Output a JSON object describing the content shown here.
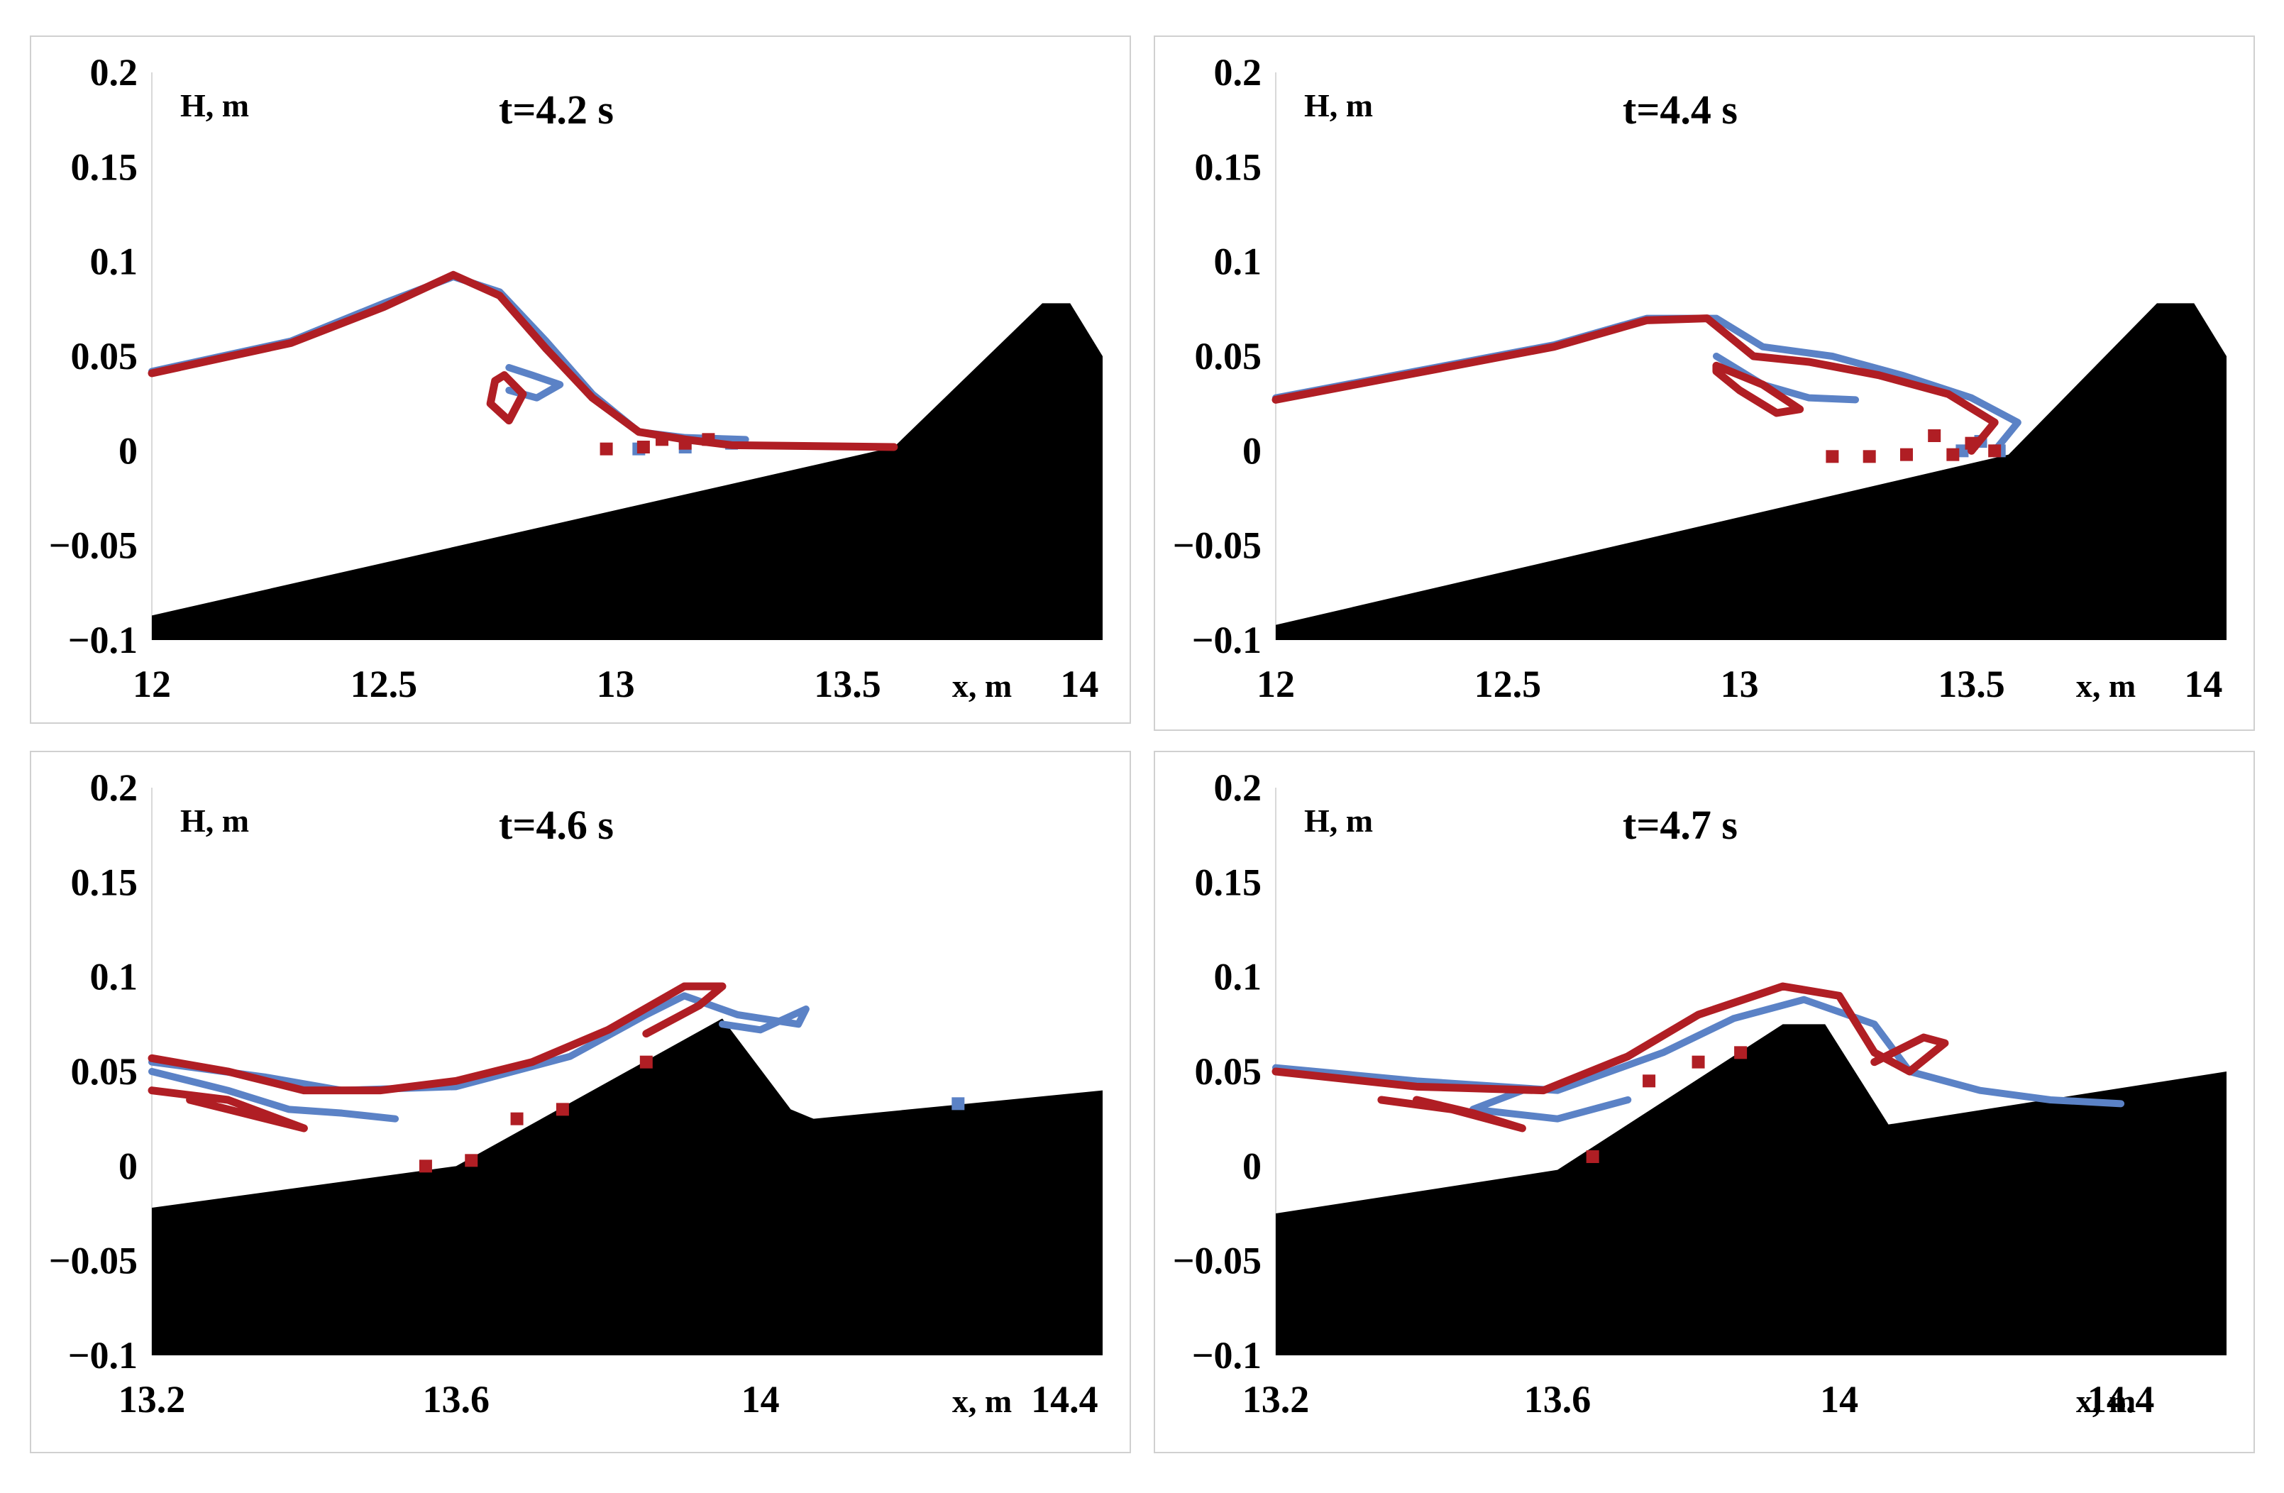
{
  "colors": {
    "simulation": "#b01e24",
    "experiment": "#5b82c6",
    "bottom": "#000000"
  },
  "chart_data": [
    {
      "type": "line",
      "title": "t=4.2 s",
      "xlabel": "x, m",
      "ylabel": "H, m",
      "xlim": [
        12,
        14.05
      ],
      "ylim": [
        -0.1,
        0.2
      ],
      "xticks": [
        {
          "v": 12,
          "label": "12"
        },
        {
          "v": 12.5,
          "label": "12.5"
        },
        {
          "v": 13,
          "label": "13"
        },
        {
          "v": 13.5,
          "label": "13.5"
        },
        {
          "v": 14,
          "label": "14"
        }
      ],
      "yticks": [
        {
          "v": 0.2,
          "label": "0.2"
        },
        {
          "v": 0.15,
          "label": "0.15"
        },
        {
          "v": 0.1,
          "label": "0.1"
        },
        {
          "v": 0.05,
          "label": "0.05"
        },
        {
          "v": 0,
          "label": "0"
        },
        {
          "v": -0.05,
          "label": "−0.05"
        },
        {
          "v": -0.1,
          "label": "−0.1"
        }
      ],
      "bottom": [
        [
          12,
          -0.087
        ],
        [
          13.6,
          0.002
        ],
        [
          13.92,
          0.078
        ],
        [
          13.98,
          0.078
        ],
        [
          14.05,
          0.05
        ],
        [
          14.05,
          -0.1
        ],
        [
          12,
          -0.1
        ]
      ],
      "series": [
        {
          "name": "experiment",
          "lines": [
            [
              [
                12.0,
                0.042
              ],
              [
                12.3,
                0.058
              ],
              [
                12.5,
                0.078
              ],
              [
                12.65,
                0.092
              ],
              [
                12.75,
                0.084
              ],
              [
                12.85,
                0.058
              ],
              [
                12.95,
                0.03
              ],
              [
                13.05,
                0.01
              ],
              [
                13.15,
                0.007
              ],
              [
                13.28,
                0.006
              ]
            ],
            [
              [
                12.77,
                0.044
              ],
              [
                12.82,
                0.04
              ],
              [
                12.88,
                0.035
              ],
              [
                12.83,
                0.028
              ],
              [
                12.77,
                0.032
              ]
            ]
          ],
          "dots": [
            [
              13.05,
              0.001
            ],
            [
              13.15,
              0.002
            ],
            [
              13.25,
              0.004
            ]
          ]
        },
        {
          "name": "simulation",
          "lines": [
            [
              [
                12.0,
                0.041
              ],
              [
                12.3,
                0.057
              ],
              [
                12.5,
                0.076
              ],
              [
                12.65,
                0.093
              ],
              [
                12.75,
                0.082
              ],
              [
                12.85,
                0.054
              ],
              [
                12.95,
                0.028
              ],
              [
                13.05,
                0.01
              ],
              [
                13.15,
                0.006
              ],
              [
                13.25,
                0.003
              ],
              [
                13.6,
                0.002
              ]
            ],
            [
              [
                12.76,
                0.04
              ],
              [
                12.8,
                0.03
              ],
              [
                12.77,
                0.016
              ],
              [
                12.73,
                0.025
              ],
              [
                12.74,
                0.037
              ],
              [
                12.76,
                0.04
              ]
            ]
          ],
          "dots": [
            [
              12.98,
              0.001
            ],
            [
              13.06,
              0.002
            ],
            [
              13.1,
              0.006
            ],
            [
              13.15,
              0.004
            ],
            [
              13.2,
              0.006
            ]
          ]
        }
      ]
    },
    {
      "type": "line",
      "title": "t=4.4 s",
      "xlabel": "x, m",
      "ylabel": "H, m",
      "xlim": [
        12,
        14.05
      ],
      "ylim": [
        -0.1,
        0.2
      ],
      "xticks": [
        {
          "v": 12,
          "label": "12"
        },
        {
          "v": 12.5,
          "label": "12.5"
        },
        {
          "v": 13,
          "label": "13"
        },
        {
          "v": 13.5,
          "label": "13.5"
        },
        {
          "v": 14,
          "label": "14"
        }
      ],
      "yticks": [
        {
          "v": 0.2,
          "label": "0.2"
        },
        {
          "v": 0.15,
          "label": "0.15"
        },
        {
          "v": 0.1,
          "label": "0.1"
        },
        {
          "v": 0.05,
          "label": "0.05"
        },
        {
          "v": 0,
          "label": "0"
        },
        {
          "v": -0.05,
          "label": "−0.05"
        },
        {
          "v": -0.1,
          "label": "−0.1"
        }
      ],
      "bottom": [
        [
          12,
          -0.092
        ],
        [
          13.58,
          -0.002
        ],
        [
          13.9,
          0.078
        ],
        [
          13.98,
          0.078
        ],
        [
          14.05,
          0.05
        ],
        [
          14.05,
          -0.1
        ],
        [
          12,
          -0.1
        ]
      ],
      "series": [
        {
          "name": "experiment",
          "lines": [
            [
              [
                12.0,
                0.028
              ],
              [
                12.3,
                0.042
              ],
              [
                12.6,
                0.056
              ],
              [
                12.8,
                0.07
              ],
              [
                12.95,
                0.07
              ],
              [
                13.05,
                0.055
              ],
              [
                13.2,
                0.05
              ],
              [
                13.35,
                0.04
              ],
              [
                13.5,
                0.028
              ],
              [
                13.6,
                0.015
              ],
              [
                13.55,
                0.0
              ]
            ],
            [
              [
                12.95,
                0.05
              ],
              [
                13.05,
                0.035
              ],
              [
                13.15,
                0.028
              ],
              [
                13.25,
                0.027
              ]
            ]
          ],
          "dots": [
            [
              13.48,
              0.0
            ],
            [
              13.52,
              0.005
            ],
            [
              13.56,
              0.0
            ]
          ]
        },
        {
          "name": "simulation",
          "lines": [
            [
              [
                12.0,
                0.027
              ],
              [
                12.3,
                0.041
              ],
              [
                12.6,
                0.055
              ],
              [
                12.8,
                0.069
              ],
              [
                12.93,
                0.07
              ],
              [
                13.03,
                0.05
              ],
              [
                13.15,
                0.047
              ],
              [
                13.3,
                0.04
              ],
              [
                13.45,
                0.03
              ],
              [
                13.55,
                0.015
              ],
              [
                13.5,
                0.0
              ]
            ],
            [
              [
                12.95,
                0.045
              ],
              [
                13.05,
                0.035
              ],
              [
                13.13,
                0.022
              ],
              [
                13.08,
                0.02
              ],
              [
                13.0,
                0.032
              ],
              [
                12.95,
                0.042
              ],
              [
                12.95,
                0.045
              ]
            ]
          ],
          "dots": [
            [
              13.2,
              -0.003
            ],
            [
              13.28,
              -0.003
            ],
            [
              13.36,
              -0.002
            ],
            [
              13.42,
              0.008
            ],
            [
              13.46,
              -0.002
            ],
            [
              13.5,
              0.004
            ],
            [
              13.55,
              0.0
            ]
          ]
        }
      ]
    },
    {
      "type": "line",
      "title": "t=4.6 s",
      "xlabel": "x, m",
      "ylabel": "H, m",
      "xlim": [
        13.2,
        14.45
      ],
      "ylim": [
        -0.1,
        0.2
      ],
      "xticks": [
        {
          "v": 13.2,
          "label": "13.2"
        },
        {
          "v": 13.6,
          "label": "13.6"
        },
        {
          "v": 14,
          "label": "14"
        },
        {
          "v": 14.4,
          "label": "14.4"
        }
      ],
      "yticks": [
        {
          "v": 0.2,
          "label": "0.2"
        },
        {
          "v": 0.15,
          "label": "0.15"
        },
        {
          "v": 0.1,
          "label": "0.1"
        },
        {
          "v": 0.05,
          "label": "0.05"
        },
        {
          "v": 0,
          "label": "0"
        },
        {
          "v": -0.05,
          "label": "−0.05"
        },
        {
          "v": -0.1,
          "label": "−0.1"
        }
      ],
      "bottom": [
        [
          13.2,
          -0.022
        ],
        [
          13.6,
          0.0
        ],
        [
          13.95,
          0.078
        ],
        [
          14.04,
          0.03
        ],
        [
          14.07,
          0.025
        ],
        [
          14.45,
          0.04
        ],
        [
          14.45,
          -0.1
        ],
        [
          13.2,
          -0.1
        ]
      ],
      "series": [
        {
          "name": "experiment",
          "lines": [
            [
              [
                13.2,
                0.055
              ],
              [
                13.35,
                0.047
              ],
              [
                13.45,
                0.04
              ],
              [
                13.6,
                0.042
              ],
              [
                13.75,
                0.058
              ],
              [
                13.85,
                0.08
              ],
              [
                13.9,
                0.09
              ],
              [
                13.97,
                0.08
              ],
              [
                14.05,
                0.075
              ],
              [
                14.06,
                0.083
              ],
              [
                14.0,
                0.072
              ],
              [
                13.95,
                0.075
              ]
            ],
            [
              [
                13.2,
                0.05
              ],
              [
                13.3,
                0.04
              ],
              [
                13.38,
                0.03
              ],
              [
                13.45,
                0.028
              ],
              [
                13.52,
                0.025
              ]
            ]
          ],
          "dots": [
            [
              14.26,
              0.033
            ]
          ]
        },
        {
          "name": "simulation",
          "lines": [
            [
              [
                13.2,
                0.057
              ],
              [
                13.3,
                0.05
              ],
              [
                13.4,
                0.04
              ],
              [
                13.5,
                0.04
              ],
              [
                13.6,
                0.045
              ],
              [
                13.7,
                0.055
              ],
              [
                13.8,
                0.072
              ],
              [
                13.9,
                0.095
              ],
              [
                13.95,
                0.095
              ],
              [
                13.92,
                0.085
              ],
              [
                13.85,
                0.07
              ]
            ],
            [
              [
                13.2,
                0.04
              ],
              [
                13.3,
                0.035
              ],
              [
                13.4,
                0.02
              ],
              [
                13.35,
                0.025
              ],
              [
                13.3,
                0.03
              ],
              [
                13.25,
                0.035
              ]
            ]
          ],
          "dots": [
            [
              13.56,
              0.0
            ],
            [
              13.62,
              0.003
            ],
            [
              13.68,
              0.025
            ],
            [
              13.74,
              0.03
            ],
            [
              13.85,
              0.055
            ]
          ]
        }
      ]
    },
    {
      "type": "line",
      "title": "t=4.7 s",
      "xlabel": "x, m",
      "ylabel": "H, m",
      "xlim": [
        13.2,
        14.55
      ],
      "ylim": [
        -0.1,
        0.2
      ],
      "xticks": [
        {
          "v": 13.2,
          "label": "13.2"
        },
        {
          "v": 13.6,
          "label": "13.6"
        },
        {
          "v": 14,
          "label": "14"
        },
        {
          "v": 14.4,
          "label": "14.4"
        }
      ],
      "yticks": [
        {
          "v": 0.2,
          "label": "0.2"
        },
        {
          "v": 0.15,
          "label": "0.15"
        },
        {
          "v": 0.1,
          "label": "0.1"
        },
        {
          "v": 0.05,
          "label": "0.05"
        },
        {
          "v": 0,
          "label": "0"
        },
        {
          "v": -0.05,
          "label": "−0.05"
        },
        {
          "v": -0.1,
          "label": "−0.1"
        }
      ],
      "bottom": [
        [
          13.2,
          -0.025
        ],
        [
          13.6,
          -0.002
        ],
        [
          13.92,
          0.075
        ],
        [
          13.98,
          0.075
        ],
        [
          14.07,
          0.022
        ],
        [
          14.55,
          0.05
        ],
        [
          14.55,
          -0.1
        ],
        [
          13.2,
          -0.1
        ]
      ],
      "series": [
        {
          "name": "experiment",
          "lines": [
            [
              [
                13.2,
                0.052
              ],
              [
                13.4,
                0.045
              ],
              [
                13.6,
                0.04
              ],
              [
                13.75,
                0.06
              ],
              [
                13.85,
                0.078
              ],
              [
                13.95,
                0.088
              ],
              [
                14.05,
                0.075
              ],
              [
                14.1,
                0.05
              ],
              [
                14.2,
                0.04
              ],
              [
                14.3,
                0.035
              ],
              [
                14.4,
                0.033
              ]
            ],
            [
              [
                13.55,
                0.04
              ],
              [
                13.48,
                0.03
              ],
              [
                13.6,
                0.025
              ],
              [
                13.7,
                0.035
              ]
            ]
          ],
          "dots": []
        },
        {
          "name": "simulation",
          "lines": [
            [
              [
                13.2,
                0.05
              ],
              [
                13.4,
                0.042
              ],
              [
                13.58,
                0.04
              ],
              [
                13.7,
                0.058
              ],
              [
                13.8,
                0.08
              ],
              [
                13.92,
                0.095
              ],
              [
                14.0,
                0.09
              ],
              [
                14.05,
                0.06
              ],
              [
                14.1,
                0.05
              ],
              [
                14.15,
                0.065
              ],
              [
                14.12,
                0.068
              ],
              [
                14.05,
                0.055
              ]
            ],
            [
              [
                13.35,
                0.035
              ],
              [
                13.45,
                0.03
              ],
              [
                13.55,
                0.02
              ],
              [
                13.48,
                0.028
              ],
              [
                13.4,
                0.035
              ]
            ]
          ],
          "dots": [
            [
              13.65,
              0.005
            ],
            [
              13.73,
              0.045
            ],
            [
              13.8,
              0.055
            ],
            [
              13.86,
              0.06
            ]
          ]
        }
      ]
    }
  ]
}
